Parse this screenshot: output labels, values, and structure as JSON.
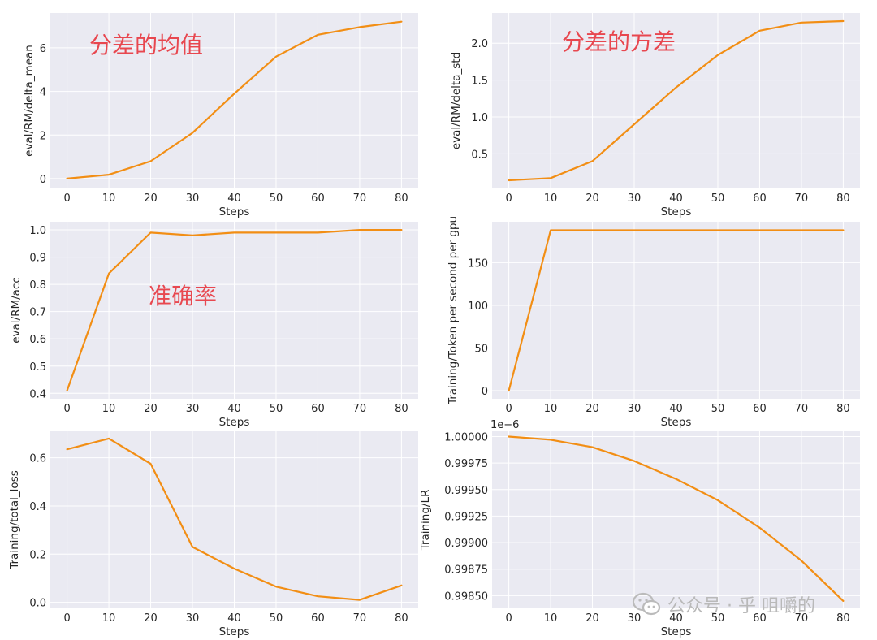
{
  "chart_data": [
    {
      "type": "line",
      "xlabel": "Steps",
      "ylabel": "eval/RM/delta_mean",
      "x": [
        0,
        10,
        20,
        30,
        40,
        50,
        60,
        70,
        80
      ],
      "y": [
        0.0,
        0.18,
        0.8,
        2.1,
        3.9,
        5.6,
        6.6,
        6.95,
        7.2
      ],
      "xlim": [
        -4,
        84
      ],
      "ylim": [
        -0.45,
        7.6
      ],
      "xticks": [
        0,
        10,
        20,
        30,
        40,
        50,
        60,
        70,
        80
      ],
      "yticks": [
        0,
        2,
        4,
        6
      ],
      "ytick_labels": [
        "0",
        "2",
        "4",
        "6"
      ],
      "annotation": "分差的均值",
      "color": "#f28e14",
      "grid": true,
      "background": "#eaeaf2"
    },
    {
      "type": "line",
      "xlabel": "Steps",
      "ylabel": "eval/RM/delta_std",
      "x": [
        0,
        10,
        20,
        30,
        40,
        50,
        60,
        70,
        80
      ],
      "y": [
        0.14,
        0.17,
        0.4,
        0.9,
        1.4,
        1.84,
        2.17,
        2.28,
        2.3
      ],
      "xlim": [
        -4,
        84
      ],
      "ylim": [
        0.03,
        2.41
      ],
      "xticks": [
        0,
        10,
        20,
        30,
        40,
        50,
        60,
        70,
        80
      ],
      "yticks": [
        0.5,
        1.0,
        1.5,
        2.0
      ],
      "ytick_labels": [
        "0.5",
        "1.0",
        "1.5",
        "2.0"
      ],
      "annotation": "分差的方差",
      "color": "#f28e14",
      "grid": true,
      "background": "#eaeaf2"
    },
    {
      "type": "line",
      "xlabel": "Steps",
      "ylabel": "eval/RM/acc",
      "x": [
        0,
        10,
        20,
        30,
        40,
        50,
        60,
        70,
        80
      ],
      "y": [
        0.41,
        0.84,
        0.99,
        0.98,
        0.99,
        0.99,
        0.99,
        1.0,
        1.0
      ],
      "xlim": [
        -4,
        84
      ],
      "ylim": [
        0.38,
        1.03
      ],
      "xticks": [
        0,
        10,
        20,
        30,
        40,
        50,
        60,
        70,
        80
      ],
      "yticks": [
        0.4,
        0.5,
        0.6,
        0.7,
        0.8,
        0.9,
        1.0
      ],
      "ytick_labels": [
        "0.4",
        "0.5",
        "0.6",
        "0.7",
        "0.8",
        "0.9",
        "1.0"
      ],
      "annotation": "准确率",
      "color": "#f28e14",
      "grid": true,
      "background": "#eaeaf2"
    },
    {
      "type": "line",
      "xlabel": "Steps",
      "ylabel": "Training/Token per second per gpu",
      "x": [
        0,
        10,
        20,
        30,
        40,
        50,
        60,
        70,
        80
      ],
      "y": [
        0,
        188,
        188,
        188,
        188,
        188,
        188,
        188,
        188
      ],
      "xlim": [
        -4,
        84
      ],
      "ylim": [
        -9.5,
        198
      ],
      "xticks": [
        0,
        10,
        20,
        30,
        40,
        50,
        60,
        70,
        80
      ],
      "yticks": [
        0,
        50,
        100,
        150
      ],
      "ytick_labels": [
        "0",
        "50",
        "100",
        "150"
      ],
      "color": "#f28e14",
      "grid": true,
      "background": "#eaeaf2"
    },
    {
      "type": "line",
      "xlabel": "Steps",
      "ylabel": "Training/total_loss",
      "x": [
        0,
        10,
        20,
        30,
        40,
        50,
        60,
        70,
        80
      ],
      "y": [
        0.635,
        0.68,
        0.575,
        0.23,
        0.14,
        0.065,
        0.025,
        0.01,
        0.07
      ],
      "xlim": [
        -4,
        84
      ],
      "ylim": [
        -0.025,
        0.71
      ],
      "xticks": [
        0,
        10,
        20,
        30,
        40,
        50,
        60,
        70,
        80
      ],
      "yticks": [
        0.0,
        0.2,
        0.4,
        0.6
      ],
      "ytick_labels": [
        "0.0",
        "0.2",
        "0.4",
        "0.6"
      ],
      "color": "#f28e14",
      "grid": true,
      "background": "#eaeaf2"
    },
    {
      "type": "line",
      "xlabel": "Steps",
      "ylabel": "Training/LR",
      "scale_note": "1e−6",
      "x": [
        0,
        10,
        20,
        30,
        40,
        50,
        60,
        70,
        80
      ],
      "y": [
        1.0,
        0.99997,
        0.9999,
        0.99977,
        0.9996,
        0.9994,
        0.99914,
        0.99883,
        0.99845
      ],
      "xlim": [
        -4,
        84
      ],
      "ylim": [
        0.99838,
        1.00005
      ],
      "xticks": [
        0,
        10,
        20,
        30,
        40,
        50,
        60,
        70,
        80
      ],
      "yticks": [
        0.9985,
        0.99875,
        0.999,
        0.99925,
        0.9995,
        0.99975,
        1.0
      ],
      "ytick_labels": [
        "0.99850",
        "0.99875",
        "0.99900",
        "0.99925",
        "0.99950",
        "0.99975",
        "1.00000"
      ],
      "color": "#f28e14",
      "grid": true,
      "background": "#eaeaf2"
    }
  ],
  "watermark": {
    "text": "公众号 · 乎 咀嚼的",
    "icon": "wechat-icon"
  }
}
